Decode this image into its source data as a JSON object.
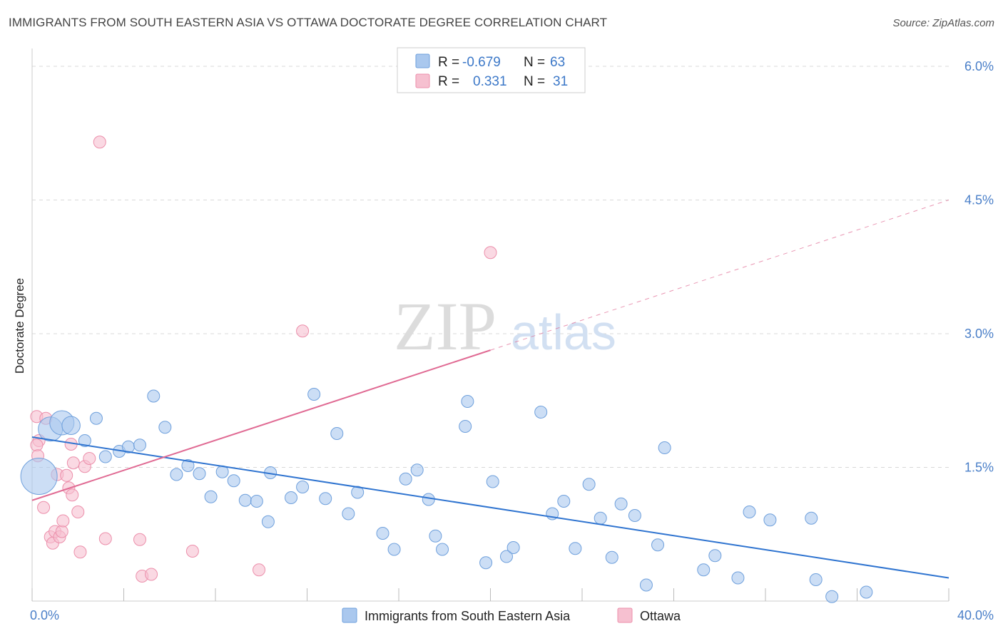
{
  "title": "IMMIGRANTS FROM SOUTH EASTERN ASIA VS OTTAWA DOCTORATE DEGREE CORRELATION CHART",
  "source": "Source: ZipAtlas.com",
  "watermark": {
    "zip": "ZIP",
    "atlas": "atlas"
  },
  "colors": {
    "blue_fill": "#aac8ee",
    "blue_stroke": "#6fa0dc",
    "blue_line": "#2f74d0",
    "pink_fill": "#f6c0d0",
    "pink_stroke": "#ec8fab",
    "pink_line": "#e06a93",
    "grid": "#d8d8d8",
    "axis_text": "#4a7fc8"
  },
  "legend": {
    "rows": [
      {
        "r_label": "R =",
        "r_value": "-0.679",
        "n_label": "N =",
        "n_value": "63"
      },
      {
        "r_label": "R =",
        "r_value": "0.331",
        "n_label": "N =",
        "n_value": "31"
      }
    ]
  },
  "chart_data": {
    "type": "scatter",
    "title": "IMMIGRANTS FROM SOUTH EASTERN ASIA VS OTTAWA DOCTORATE DEGREE CORRELATION CHART",
    "xlabel": "",
    "ylabel": "Doctorate Degree",
    "xlim": [
      0,
      40
    ],
    "ylim": [
      0,
      6.2
    ],
    "x_tick_labels": [
      "0.0%",
      "40.0%"
    ],
    "y_ticks": [
      1.5,
      3.0,
      4.5,
      6.0
    ],
    "y_tick_labels": [
      "1.5%",
      "3.0%",
      "4.5%",
      "6.0%"
    ],
    "series": [
      {
        "name": "Immigrants from South Eastern Asia",
        "color": "blue",
        "r": -0.679,
        "n": 63,
        "trend": {
          "x0": 0,
          "y0": 1.84,
          "x1": 40,
          "y1": 0.26,
          "dash_from": null
        },
        "points": [
          [
            0.3,
            1.4,
            3
          ],
          [
            0.8,
            1.93,
            2
          ],
          [
            1.3,
            2.0,
            2
          ],
          [
            1.7,
            1.97,
            1.5
          ],
          [
            2.3,
            1.8,
            1
          ],
          [
            2.8,
            2.05,
            1
          ],
          [
            3.2,
            1.62,
            1
          ],
          [
            3.8,
            1.68,
            1
          ],
          [
            4.2,
            1.73,
            1
          ],
          [
            4.7,
            1.75,
            1
          ],
          [
            5.3,
            2.3,
            1
          ],
          [
            5.8,
            1.95,
            1
          ],
          [
            6.3,
            1.42,
            1
          ],
          [
            6.8,
            1.52,
            1
          ],
          [
            7.3,
            1.43,
            1
          ],
          [
            7.8,
            1.17,
            1
          ],
          [
            8.3,
            1.45,
            1
          ],
          [
            8.8,
            1.35,
            1
          ],
          [
            9.3,
            1.13,
            1
          ],
          [
            9.8,
            1.12,
            1
          ],
          [
            10.4,
            1.44,
            1
          ],
          [
            10.3,
            0.89,
            1
          ],
          [
            11.3,
            1.16,
            1
          ],
          [
            11.8,
            1.28,
            1
          ],
          [
            12.3,
            2.32,
            1
          ],
          [
            12.8,
            1.15,
            1
          ],
          [
            13.3,
            1.88,
            1
          ],
          [
            13.8,
            0.98,
            1
          ],
          [
            14.2,
            1.22,
            1
          ],
          [
            15.3,
            0.76,
            1
          ],
          [
            15.8,
            0.58,
            1
          ],
          [
            16.3,
            1.37,
            1
          ],
          [
            16.8,
            1.47,
            1
          ],
          [
            17.3,
            1.14,
            1
          ],
          [
            17.6,
            0.73,
            1
          ],
          [
            17.9,
            0.58,
            1
          ],
          [
            18.9,
            1.96,
            1
          ],
          [
            19.0,
            2.24,
            1
          ],
          [
            19.8,
            0.43,
            1
          ],
          [
            20.1,
            1.34,
            1
          ],
          [
            20.7,
            0.5,
            1
          ],
          [
            21.0,
            0.6,
            1
          ],
          [
            22.2,
            2.12,
            1
          ],
          [
            22.7,
            0.98,
            1
          ],
          [
            23.2,
            1.12,
            1
          ],
          [
            23.7,
            0.59,
            1
          ],
          [
            24.3,
            1.31,
            1
          ],
          [
            24.8,
            0.93,
            1
          ],
          [
            25.3,
            0.49,
            1
          ],
          [
            25.7,
            1.09,
            1
          ],
          [
            26.3,
            0.96,
            1
          ],
          [
            26.8,
            0.18,
            1
          ],
          [
            27.3,
            0.63,
            1
          ],
          [
            27.6,
            1.72,
            1
          ],
          [
            29.3,
            0.35,
            1
          ],
          [
            29.8,
            0.51,
            1
          ],
          [
            30.8,
            0.26,
            1
          ],
          [
            31.3,
            1.0,
            1
          ],
          [
            32.2,
            0.91,
            1
          ],
          [
            34.2,
            0.24,
            1
          ],
          [
            34.0,
            0.93,
            1
          ],
          [
            34.9,
            0.05,
            1
          ],
          [
            36.4,
            0.1,
            1
          ]
        ]
      },
      {
        "name": "Ottawa",
        "color": "pink",
        "r": 0.331,
        "n": 31,
        "trend": {
          "x0": 0,
          "y0": 1.13,
          "x1": 40,
          "y1": 4.5,
          "dash_from": 20
        },
        "points": [
          [
            0.2,
            2.07,
            1
          ],
          [
            0.3,
            1.8,
            1
          ],
          [
            0.2,
            1.75,
            1
          ],
          [
            0.25,
            1.63,
            1
          ],
          [
            0.5,
            1.05,
            1
          ],
          [
            0.6,
            2.05,
            1
          ],
          [
            0.8,
            0.72,
            1
          ],
          [
            0.9,
            0.65,
            1
          ],
          [
            1.0,
            0.78,
            1
          ],
          [
            1.1,
            1.42,
            1
          ],
          [
            1.2,
            0.72,
            1
          ],
          [
            1.3,
            0.78,
            1
          ],
          [
            1.35,
            0.9,
            1
          ],
          [
            1.5,
            1.41,
            1
          ],
          [
            1.6,
            1.27,
            1
          ],
          [
            1.7,
            1.76,
            1
          ],
          [
            1.75,
            1.19,
            1
          ],
          [
            1.8,
            1.55,
            1
          ],
          [
            2.0,
            1.0,
            1
          ],
          [
            2.1,
            0.55,
            1
          ],
          [
            2.3,
            1.51,
            1
          ],
          [
            2.5,
            1.6,
            1
          ],
          [
            3.2,
            0.7,
            1
          ],
          [
            2.95,
            5.15,
            1
          ],
          [
            4.7,
            0.69,
            1
          ],
          [
            4.8,
            0.28,
            1
          ],
          [
            5.2,
            0.3,
            1
          ],
          [
            7.0,
            0.56,
            1
          ],
          [
            9.9,
            0.35,
            1
          ],
          [
            11.8,
            3.03,
            1
          ],
          [
            20.0,
            3.91,
            1
          ]
        ]
      }
    ]
  },
  "bottom_legend": {
    "items": [
      "Immigrants from South Eastern Asia",
      "Ottawa"
    ]
  }
}
